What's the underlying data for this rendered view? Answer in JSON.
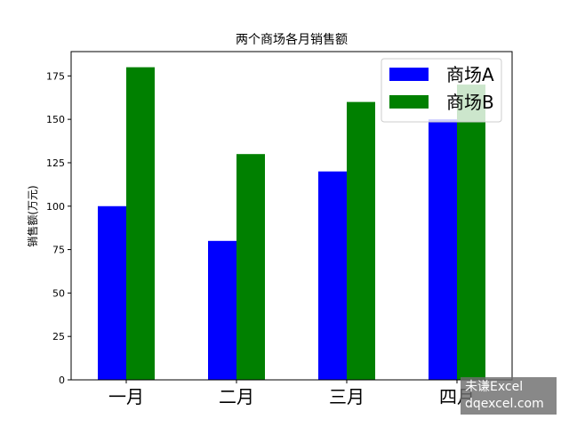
{
  "chart_data": {
    "type": "bar",
    "title": "两个商场各月销售额",
    "xlabel": "",
    "ylabel": "销售额(万元)",
    "categories": [
      "一月",
      "二月",
      "三月",
      "四月"
    ],
    "series": [
      {
        "name": "商场A",
        "color": "#0000ff",
        "values": [
          100,
          80,
          120,
          150
        ]
      },
      {
        "name": "商场B",
        "color": "#008000",
        "values": [
          180,
          130,
          160,
          170
        ]
      }
    ],
    "ylim": [
      0,
      189
    ],
    "yticks": [
      0,
      25,
      50,
      75,
      100,
      125,
      150,
      175
    ],
    "grid": false,
    "legend_position": "top-right"
  },
  "watermark": {
    "line1": "未谦Excel",
    "line2": "dqexcel.com"
  }
}
